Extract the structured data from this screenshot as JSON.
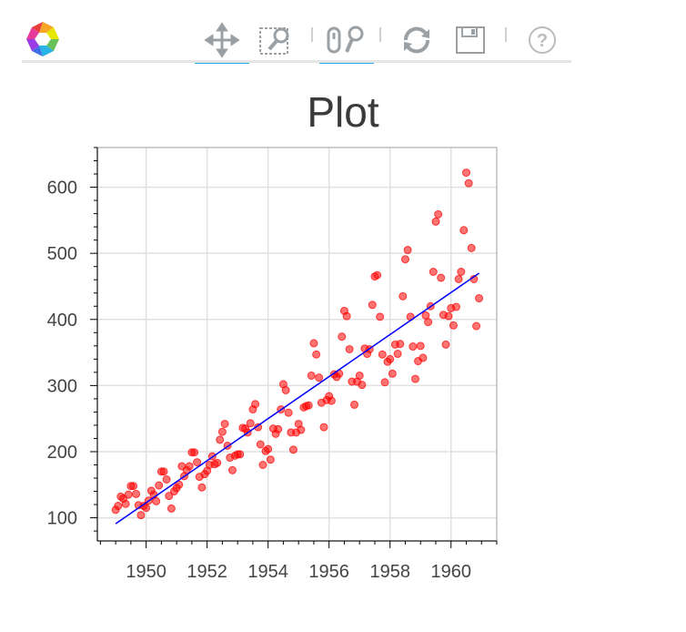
{
  "toolbar": {
    "tools": [
      {
        "name": "pan-tool",
        "icon": "pan-icon",
        "active": true
      },
      {
        "name": "box-zoom-tool",
        "icon": "box-zoom-icon",
        "active": false
      },
      {
        "name": "wheel-zoom-tool",
        "icon": "wheel-zoom-icon",
        "active": true
      },
      {
        "name": "reset-tool",
        "icon": "reset-icon",
        "active": false
      },
      {
        "name": "save-tool",
        "icon": "save-icon",
        "active": false
      },
      {
        "name": "help-tool",
        "icon": "help-icon",
        "active": false
      }
    ],
    "active_color": "#26aae1",
    "icon_color": "#9aa0a4"
  },
  "chart_data": {
    "type": "scatter",
    "title": "Plot",
    "xlabel": "",
    "ylabel": "",
    "xlim": [
      1948.4,
      1961.5
    ],
    "ylim": [
      65,
      660
    ],
    "xticks": [
      1950,
      1952,
      1954,
      1956,
      1958,
      1960
    ],
    "xtick_labels": [
      "1950",
      "1952",
      "1954",
      "1956",
      "1958",
      "1960"
    ],
    "yticks": [
      100,
      200,
      300,
      400,
      500,
      600
    ],
    "ytick_labels": [
      "100",
      "200",
      "300",
      "400",
      "500",
      "600"
    ],
    "grid": true,
    "point_color": "#ff0000",
    "line_color": "#0000ff",
    "series": [
      {
        "type": "scatter",
        "x": [
          1949.0,
          1949.08,
          1949.17,
          1949.25,
          1949.33,
          1949.42,
          1949.5,
          1949.58,
          1949.67,
          1949.75,
          1949.83,
          1949.92,
          1950.0,
          1950.08,
          1950.17,
          1950.25,
          1950.33,
          1950.42,
          1950.5,
          1950.58,
          1950.67,
          1950.75,
          1950.83,
          1950.92,
          1951.0,
          1951.08,
          1951.17,
          1951.25,
          1951.33,
          1951.42,
          1951.5,
          1951.58,
          1951.67,
          1951.75,
          1951.83,
          1951.92,
          1952.0,
          1952.08,
          1952.17,
          1952.25,
          1952.33,
          1952.42,
          1952.5,
          1952.58,
          1952.67,
          1952.75,
          1952.83,
          1952.92,
          1953.0,
          1953.08,
          1953.17,
          1953.25,
          1953.33,
          1953.42,
          1953.5,
          1953.58,
          1953.67,
          1953.75,
          1953.83,
          1953.92,
          1954.0,
          1954.08,
          1954.17,
          1954.25,
          1954.33,
          1954.42,
          1954.5,
          1954.58,
          1954.67,
          1954.75,
          1954.83,
          1954.92,
          1955.0,
          1955.08,
          1955.17,
          1955.25,
          1955.33,
          1955.42,
          1955.5,
          1955.58,
          1955.67,
          1955.75,
          1955.83,
          1955.92,
          1956.0,
          1956.08,
          1956.17,
          1956.25,
          1956.33,
          1956.42,
          1956.5,
          1956.58,
          1956.67,
          1956.75,
          1956.83,
          1956.92,
          1957.0,
          1957.08,
          1957.17,
          1957.25,
          1957.33,
          1957.42,
          1957.5,
          1957.58,
          1957.67,
          1957.75,
          1957.83,
          1957.92,
          1958.0,
          1958.08,
          1958.17,
          1958.25,
          1958.33,
          1958.42,
          1958.5,
          1958.58,
          1958.67,
          1958.75,
          1958.83,
          1958.92,
          1959.0,
          1959.08,
          1959.17,
          1959.25,
          1959.33,
          1959.42,
          1959.5,
          1959.58,
          1959.67,
          1959.75,
          1959.83,
          1959.92,
          1960.0,
          1960.08,
          1960.17,
          1960.25,
          1960.33,
          1960.42,
          1960.5,
          1960.58,
          1960.67,
          1960.75,
          1960.83,
          1960.92
        ],
        "y": [
          112,
          118,
          132,
          129,
          121,
          135,
          148,
          148,
          136,
          119,
          104,
          118,
          115,
          126,
          141,
          135,
          125,
          149,
          170,
          170,
          158,
          133,
          114,
          140,
          145,
          150,
          178,
          163,
          172,
          178,
          199,
          199,
          184,
          162,
          146,
          166,
          171,
          180,
          193,
          181,
          183,
          218,
          230,
          242,
          209,
          191,
          172,
          194,
          196,
          196,
          236,
          235,
          229,
          243,
          264,
          272,
          237,
          211,
          180,
          201,
          204,
          188,
          235,
          227,
          234,
          264,
          302,
          293,
          259,
          229,
          203,
          229,
          242,
          233,
          267,
          269,
          270,
          315,
          364,
          347,
          312,
          274,
          237,
          278,
          284,
          277,
          317,
          313,
          318,
          374,
          413,
          405,
          355,
          306,
          271,
          306,
          315,
          301,
          356,
          348,
          355,
          422,
          465,
          467,
          404,
          347,
          305,
          336,
          340,
          318,
          362,
          348,
          363,
          435,
          491,
          505,
          404,
          359,
          310,
          337,
          360,
          342,
          406,
          396,
          420,
          472,
          548,
          559,
          463,
          407,
          362,
          405,
          417,
          391,
          419,
          461,
          472,
          535,
          622,
          606,
          508,
          461,
          390,
          432
        ]
      },
      {
        "type": "line",
        "name": "",
        "x": [
          1949.0,
          1960.92
        ],
        "y": [
          91,
          470
        ]
      }
    ]
  }
}
